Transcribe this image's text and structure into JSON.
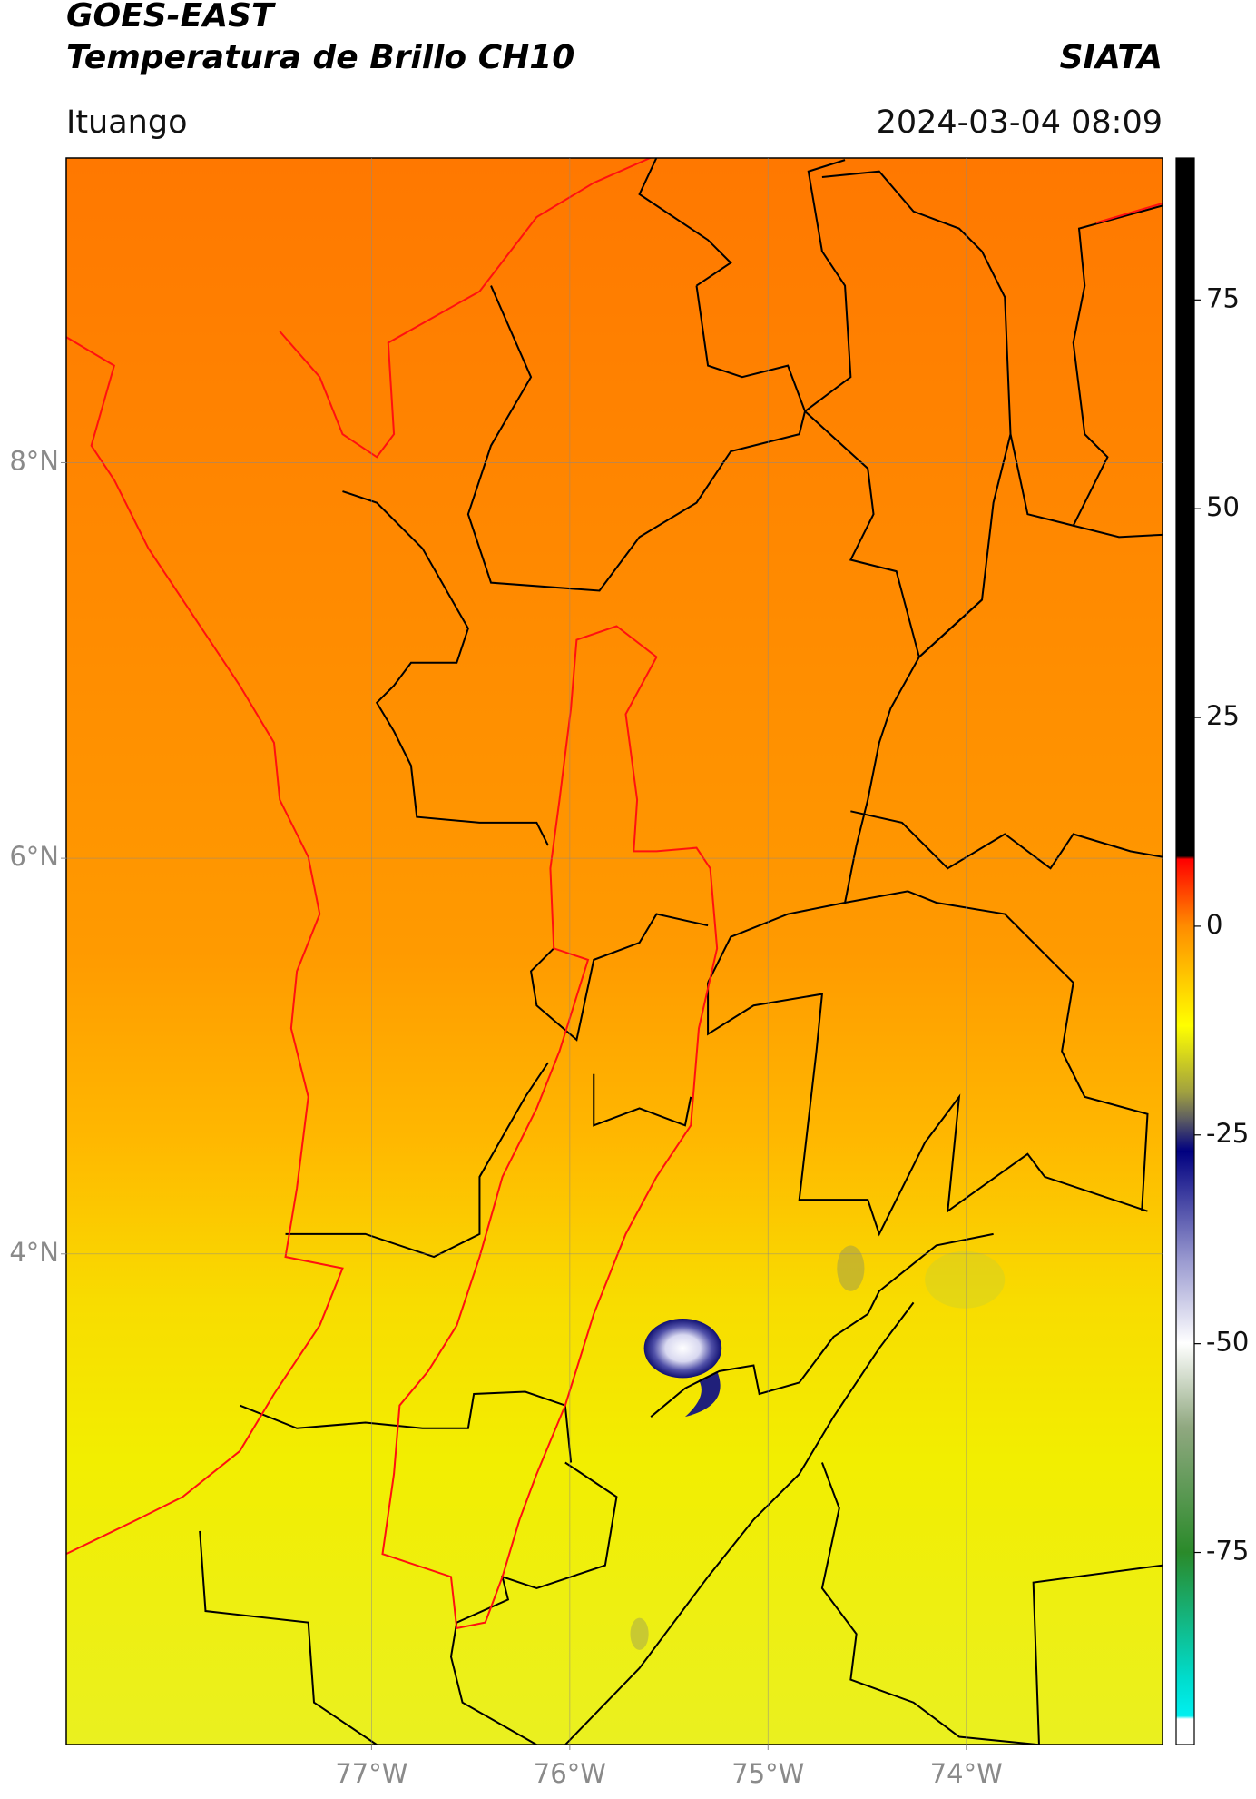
{
  "header": {
    "title": "GOES-EAST",
    "subtitle": "Temperatura de Brillo CH10",
    "source": "SIATA",
    "location": "Ituango",
    "timestamp": "2024-03-04 08:09"
  },
  "map": {
    "xlim": [
      -78.54,
      -73.01
    ],
    "ylim": [
      1.52,
      9.54
    ],
    "xticks": [
      {
        "value": -77,
        "label": "77°W"
      },
      {
        "value": -76,
        "label": "76°W"
      },
      {
        "value": -75,
        "label": "75°W"
      },
      {
        "value": -74,
        "label": "74°W"
      }
    ],
    "yticks": [
      {
        "value": 8,
        "label": "8°N"
      },
      {
        "value": 6,
        "label": "6°N"
      },
      {
        "value": 4,
        "label": "4°N"
      }
    ],
    "grid": true
  },
  "colorbar": {
    "lim": [
      -98,
      92
    ],
    "ticks": [
      75,
      50,
      25,
      0,
      -25,
      -50,
      -75
    ]
  }
}
